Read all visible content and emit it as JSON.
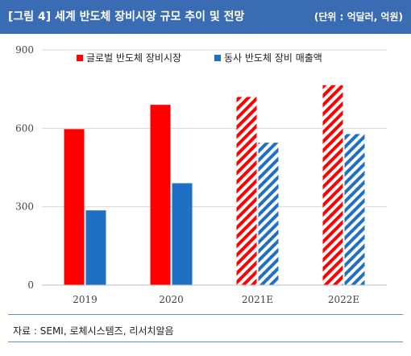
{
  "header": {
    "title": "[그림 4] 세계 반도체 장비시장 규모 추이 및 전망",
    "unit": "(단위 : 억달러, 억원)"
  },
  "source": "자료 : SEMI, 로체시스템즈, 리서치알음",
  "chart_data": {
    "type": "bar",
    "categories": [
      "2019",
      "2020",
      "2021E",
      "2022E"
    ],
    "series": [
      {
        "name": "글로벌 반도체 장비시장",
        "values": [
          597,
          690,
          720,
          765
        ],
        "color": "#ff0000",
        "hatched_from_index": 2
      },
      {
        "name": "동사 반도체 장비 매출액",
        "values": [
          286,
          390,
          545,
          578
        ],
        "color": "#1f6fc5",
        "hatched_from_index": 2
      }
    ],
    "y_ticks": [
      0,
      300,
      600,
      900
    ],
    "ylim": [
      0,
      900
    ],
    "grid": true,
    "legend_position": "top"
  }
}
